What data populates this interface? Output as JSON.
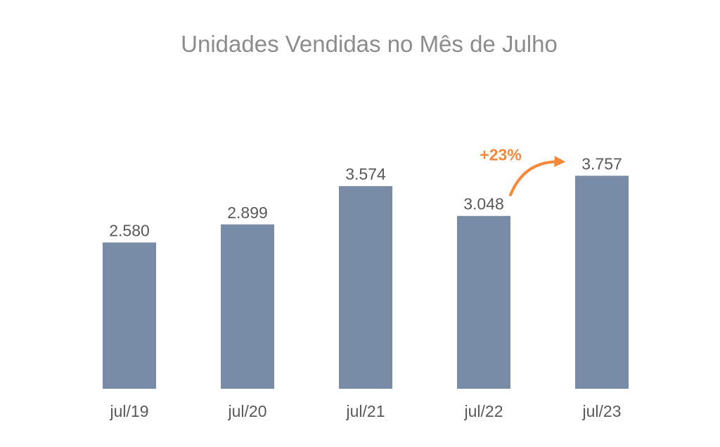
{
  "chart_data": {
    "type": "bar",
    "title": "Unidades Vendidas no Mês de Julho",
    "categories": [
      "jul/19",
      "jul/20",
      "jul/21",
      "jul/22",
      "jul/23"
    ],
    "values": [
      2580,
      2899,
      3574,
      3048,
      3757
    ],
    "value_labels": [
      "2.580",
      "2.899",
      "3.574",
      "3.048",
      "3.757"
    ],
    "ylim": [
      0,
      4000
    ],
    "grid": false,
    "legend": "none",
    "annotation": {
      "text": "+23%",
      "from_category": "jul/22",
      "to_category": "jul/23"
    }
  },
  "colors": {
    "bar": "#788ca8",
    "annotation": "#f5883a",
    "title": "#8c8c8c",
    "labels": "#595959"
  }
}
